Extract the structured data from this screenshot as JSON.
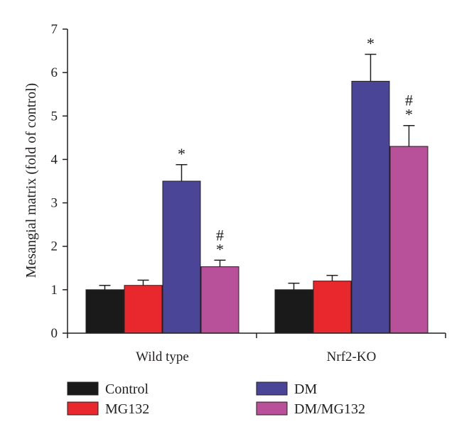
{
  "chart_data": {
    "type": "bar",
    "ylabel": "Mesangial matrix (fold of control)",
    "xlabel": "",
    "ylim": [
      0,
      7
    ],
    "yticks": [
      0,
      1,
      2,
      3,
      4,
      5,
      6,
      7
    ],
    "categories": [
      "Wild type",
      "Nrf2-KO"
    ],
    "series": [
      {
        "name": "Control",
        "color": "#1a1a1a",
        "values": [
          1.0,
          1.0
        ],
        "errors": [
          0.1,
          0.15
        ]
      },
      {
        "name": "MG132",
        "color": "#e8282d",
        "values": [
          1.1,
          1.2
        ],
        "errors": [
          0.12,
          0.13
        ]
      },
      {
        "name": "DM",
        "color": "#4b4597",
        "values": [
          3.5,
          5.8
        ],
        "errors": [
          0.38,
          0.62
        ]
      },
      {
        "name": "DM/MG132",
        "color": "#b8509a",
        "values": [
          1.53,
          4.3
        ],
        "errors": [
          0.15,
          0.48
        ]
      }
    ],
    "annotations": [
      {
        "category": 0,
        "series": 2,
        "text": "*"
      },
      {
        "category": 0,
        "series": 3,
        "text": "*"
      },
      {
        "category": 0,
        "series": 3,
        "text": "#"
      },
      {
        "category": 1,
        "series": 2,
        "text": "*"
      },
      {
        "category": 1,
        "series": 3,
        "text": "*"
      },
      {
        "category": 1,
        "series": 3,
        "text": "#"
      }
    ],
    "legend": {
      "position": "bottom"
    }
  }
}
